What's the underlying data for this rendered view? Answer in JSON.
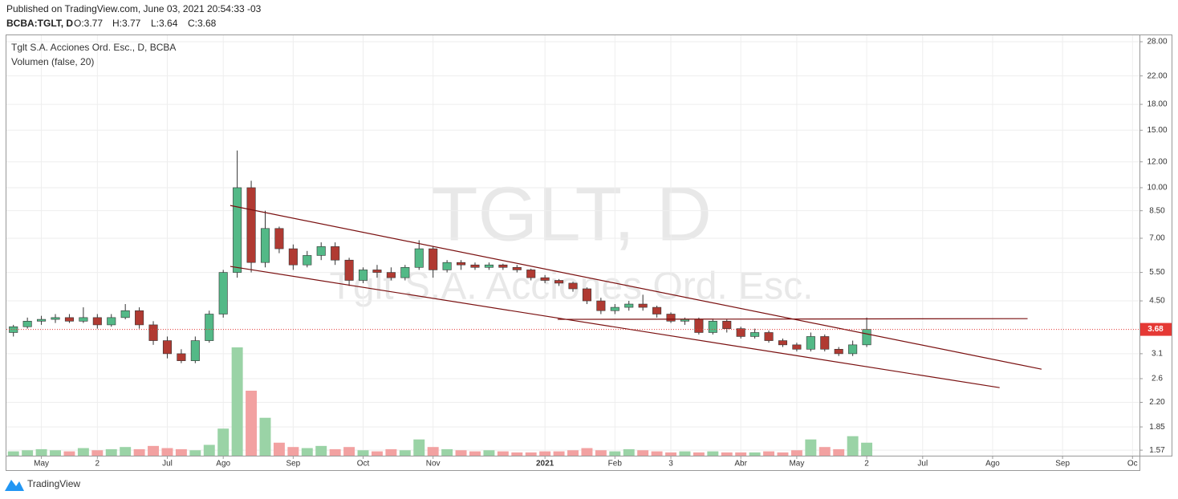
{
  "header": {
    "published": "Published on TradingView.com, June 03, 2021 20:54:33 -03",
    "symbol": "BCBA:TGLT, D",
    "ohlc": [
      "O:3.77",
      "H:3.77",
      "L:3.64",
      "C:3.68"
    ]
  },
  "legend": {
    "instrument": "Tglt S.A. Acciones Ord. Esc., D, BCBA",
    "volume": "Volumen (false, 20)"
  },
  "watermark": {
    "symbol": "TGLT, D",
    "name": "Tglt S.A. Acciones Ord. Esc."
  },
  "footer": {
    "brand": "TradingView"
  },
  "chart_data": {
    "type": "candlestick",
    "log_scale": true,
    "grid": true,
    "up_color": "#53b987",
    "down_color": "#b03a32",
    "up_volume_color": "#9ad3a6",
    "down_volume_color": "#f2a1a1",
    "trend_color": "#7a1010",
    "last_price_color": "#e53935",
    "ylim": [
      1.51,
      29.3
    ],
    "yticks": [
      {
        "value": 28,
        "label": "28.00"
      },
      {
        "value": 22,
        "label": "22.00"
      },
      {
        "value": 18,
        "label": "18.00"
      },
      {
        "value": 15,
        "label": "15.00"
      },
      {
        "value": 12,
        "label": "12.00"
      },
      {
        "value": 10,
        "label": "10.00"
      },
      {
        "value": 8.5,
        "label": "8.50"
      },
      {
        "value": 7,
        "label": "7.00"
      },
      {
        "value": 5.5,
        "label": "5.50"
      },
      {
        "value": 4.5,
        "label": "4.50"
      },
      3.1,
      2.6,
      {
        "value": 2.2,
        "label": "2.20"
      },
      1.85,
      1.57
    ],
    "last_price": 3.68,
    "categories": [
      null,
      null,
      "May",
      null,
      null,
      null,
      "2",
      null,
      null,
      null,
      null,
      "Jul",
      null,
      null,
      null,
      "Ago",
      null,
      null,
      null,
      null,
      "Sep",
      null,
      null,
      null,
      null,
      "Oct",
      null,
      null,
      null,
      null,
      "Nov",
      null,
      null,
      null,
      null,
      null,
      null,
      null,
      "2021",
      null,
      null,
      null,
      null,
      "Feb",
      null,
      null,
      null,
      "3",
      null,
      null,
      null,
      null,
      "Abr",
      null,
      null,
      null,
      "May",
      null,
      null,
      null,
      null,
      "2",
      null,
      null,
      null,
      "Jul",
      null,
      null,
      null,
      null,
      "Ago",
      null,
      null,
      null,
      null,
      "Sep",
      null,
      null,
      null,
      null,
      "Oc"
    ],
    "open": [
      3.6,
      3.75,
      3.9,
      3.95,
      4.0,
      3.9,
      4.0,
      3.8,
      4.0,
      4.2,
      3.8,
      3.4,
      3.1,
      2.95,
      3.4,
      4.1,
      5.5,
      10.0,
      5.9,
      7.5,
      6.5,
      5.8,
      6.2,
      6.6,
      6.0,
      5.2,
      5.6,
      5.5,
      5.3,
      5.7,
      6.5,
      5.6,
      5.9,
      5.8,
      5.7,
      5.8,
      5.7,
      5.6,
      5.3,
      5.2,
      5.1,
      4.9,
      4.5,
      4.2,
      4.3,
      4.4,
      4.3,
      4.1,
      3.9,
      3.95,
      3.6,
      3.9,
      3.7,
      3.5,
      3.6,
      3.4,
      3.3,
      3.2,
      3.5,
      3.2,
      3.1,
      3.3,
      null,
      null,
      null,
      null,
      null,
      null,
      null,
      null,
      null,
      null,
      null,
      null,
      null,
      null,
      null,
      null,
      null,
      null,
      null
    ],
    "high": [
      3.8,
      4.0,
      4.05,
      4.1,
      4.1,
      4.3,
      4.1,
      4.1,
      4.4,
      4.3,
      3.9,
      3.5,
      3.2,
      3.5,
      4.2,
      5.6,
      13.0,
      10.5,
      8.5,
      7.6,
      6.7,
      6.4,
      6.8,
      6.8,
      6.1,
      5.7,
      5.8,
      5.7,
      5.8,
      6.9,
      6.6,
      6.0,
      6.0,
      5.9,
      5.9,
      5.85,
      5.8,
      5.65,
      5.4,
      5.25,
      5.15,
      4.95,
      4.6,
      4.4,
      4.5,
      4.7,
      4.35,
      4.15,
      4.0,
      4.0,
      3.95,
      3.95,
      3.75,
      3.7,
      3.65,
      3.45,
      3.35,
      3.6,
      3.55,
      3.25,
      3.4,
      4.0,
      null,
      null,
      null,
      null,
      null,
      null,
      null,
      null,
      null,
      null,
      null,
      null,
      null,
      null,
      null,
      null,
      null,
      null,
      null
    ],
    "low": [
      3.5,
      3.7,
      3.8,
      3.85,
      3.85,
      3.85,
      3.7,
      3.75,
      3.95,
      3.7,
      3.3,
      3.0,
      2.9,
      2.9,
      3.35,
      4.0,
      5.3,
      5.5,
      5.7,
      6.3,
      5.6,
      5.7,
      6.0,
      5.8,
      5.0,
      5.1,
      5.3,
      5.2,
      5.2,
      5.6,
      5.3,
      5.5,
      5.6,
      5.6,
      5.6,
      5.6,
      5.5,
      5.2,
      5.1,
      5.0,
      4.8,
      4.4,
      4.1,
      4.1,
      4.2,
      4.2,
      4.0,
      3.85,
      3.8,
      3.55,
      3.55,
      3.6,
      3.45,
      3.45,
      3.35,
      3.25,
      3.15,
      3.15,
      3.15,
      3.05,
      3.05,
      3.25,
      null,
      null,
      null,
      null,
      null,
      null,
      null,
      null,
      null,
      null,
      null,
      null,
      null,
      null,
      null,
      null,
      null,
      null,
      null
    ],
    "close": [
      3.75,
      3.9,
      3.95,
      4.0,
      3.9,
      4.0,
      3.8,
      4.0,
      4.2,
      3.8,
      3.4,
      3.1,
      2.95,
      3.4,
      4.1,
      5.5,
      10.0,
      5.9,
      7.5,
      6.5,
      5.8,
      6.2,
      6.6,
      6.0,
      5.2,
      5.6,
      5.5,
      5.3,
      5.7,
      6.5,
      5.6,
      5.9,
      5.8,
      5.7,
      5.8,
      5.7,
      5.6,
      5.3,
      5.2,
      5.1,
      4.9,
      4.5,
      4.2,
      4.3,
      4.4,
      4.3,
      4.1,
      3.9,
      3.95,
      3.6,
      3.9,
      3.7,
      3.5,
      3.6,
      3.4,
      3.3,
      3.2,
      3.5,
      3.2,
      3.1,
      3.3,
      3.68,
      null,
      null,
      null,
      null,
      null,
      null,
      null,
      null,
      null,
      null,
      null,
      null,
      null,
      null,
      null,
      null,
      null,
      null,
      null
    ],
    "volume": [
      4,
      5,
      6,
      5,
      4,
      7,
      5,
      6,
      8,
      6,
      9,
      7,
      6,
      5,
      10,
      25,
      100,
      60,
      35,
      12,
      8,
      7,
      9,
      6,
      8,
      5,
      4,
      6,
      5,
      15,
      8,
      6,
      5,
      4,
      5,
      4,
      3,
      3,
      4,
      4,
      5,
      7,
      5,
      4,
      6,
      5,
      4,
      3,
      4,
      3,
      4,
      3,
      3,
      3,
      4,
      3,
      5,
      15,
      8,
      6,
      18,
      12,
      null,
      null,
      null,
      null,
      null,
      null,
      null,
      null,
      null,
      null,
      null,
      null,
      null,
      null,
      null,
      null,
      null,
      null,
      null
    ],
    "trend_lines": [
      {
        "x": [
          15.5,
          73.5
        ],
        "y": [
          8.82,
          2.78
        ]
      },
      {
        "x": [
          15.5,
          70.5
        ],
        "y": [
          5.74,
          2.44
        ]
      },
      {
        "x": [
          38.9,
          72.5
        ],
        "y": [
          3.95,
          3.97
        ]
      }
    ]
  }
}
